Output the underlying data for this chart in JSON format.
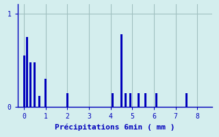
{
  "title": "",
  "xlabel": "Précipitations 6min ( mm )",
  "ylabel": "",
  "bg_color": "#d4eeee",
  "bar_color": "#0000bb",
  "grid_color": "#a0c0c0",
  "axis_color": "#0000bb",
  "tick_color": "#0000bb",
  "xlabel_color": "#0000bb",
  "ylim": [
    0,
    1.1
  ],
  "xlim": [
    -0.3,
    8.7
  ],
  "yticks": [
    0,
    1
  ],
  "xticks": [
    0,
    1,
    2,
    3,
    4,
    5,
    6,
    7,
    8
  ],
  "bar_positions": [
    0.0,
    0.15,
    0.3,
    0.5,
    0.7,
    1.0,
    2.0,
    4.1,
    4.5,
    4.7,
    4.9,
    5.3,
    5.6,
    6.1,
    7.5
  ],
  "bar_heights": [
    0.55,
    0.75,
    0.48,
    0.48,
    0.12,
    0.3,
    0.15,
    0.15,
    0.78,
    0.15,
    0.15,
    0.15,
    0.15,
    0.15,
    0.15
  ],
  "bar_width": 0.09
}
